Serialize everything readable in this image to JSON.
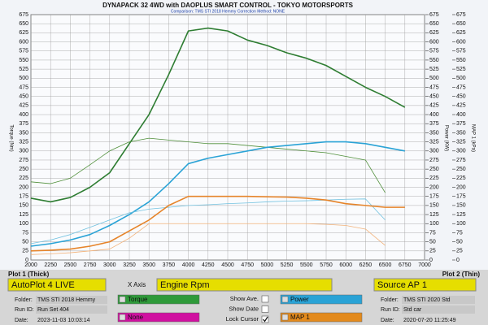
{
  "chart_data": {
    "type": "line",
    "title": "DYNAPACK 32 4WD with DAOPLUS SMART CONTROL - TOKYO MOTORSPORTS",
    "subtitle": "Comparison: TMS STI 2018 Hemmy    Correction Method: NONE",
    "y_label": "Torque (Nm)",
    "y2_label": "Power (KW)",
    "y3_label": "MAP 1 (kPa)",
    "x": [
      2000,
      2250,
      2500,
      2750,
      3000,
      3250,
      3500,
      3750,
      4000,
      4250,
      4500,
      4750,
      5000,
      5250,
      5500,
      5750,
      6000,
      6250,
      6500,
      6750
    ],
    "xlim": [
      2000,
      7000
    ],
    "xticks": [
      2000,
      2250,
      2500,
      2750,
      3000,
      3250,
      3500,
      3750,
      4000,
      4250,
      4500,
      4750,
      5000,
      5250,
      5500,
      5750,
      6000,
      6250,
      6500,
      6750,
      7000
    ],
    "ylim": [
      0,
      675
    ],
    "yticks": [
      0,
      25,
      50,
      75,
      100,
      125,
      150,
      175,
      200,
      225,
      250,
      275,
      300,
      325,
      350,
      375,
      400,
      425,
      450,
      475,
      500,
      525,
      550,
      575,
      600,
      625,
      650,
      675
    ],
    "grid": true,
    "series": [
      {
        "color": "#2e7d32",
        "width": 1.6,
        "values": [
          170,
          160,
          172,
          200,
          240,
          320,
          400,
          510,
          630,
          638,
          630,
          605,
          590,
          570,
          555,
          535,
          505,
          475,
          450,
          420
        ]
      },
      {
        "color": "#4f8f3a",
        "width": 0.8,
        "values": [
          215,
          210,
          225,
          262,
          300,
          325,
          335,
          330,
          325,
          320,
          320,
          315,
          310,
          305,
          300,
          295,
          285,
          275,
          185,
          null
        ]
      },
      {
        "color": "#2aa3d6",
        "width": 1.6,
        "values": [
          38,
          45,
          55,
          70,
          95,
          125,
          160,
          210,
          265,
          280,
          290,
          300,
          310,
          315,
          320,
          325,
          325,
          320,
          310,
          300
        ]
      },
      {
        "color": "#72c2e0",
        "width": 0.8,
        "values": [
          45,
          55,
          70,
          90,
          110,
          130,
          140,
          145,
          150,
          152,
          155,
          157,
          160,
          162,
          163,
          165,
          167,
          168,
          110,
          null
        ]
      },
      {
        "color": "#e6842a",
        "width": 1.6,
        "values": [
          25,
          27,
          30,
          38,
          50,
          80,
          110,
          150,
          175,
          175,
          175,
          175,
          174,
          173,
          170,
          165,
          155,
          150,
          145,
          145
        ]
      },
      {
        "color": "#f2b27a",
        "width": 0.8,
        "values": [
          15,
          17,
          20,
          25,
          30,
          60,
          100,
          100,
          100,
          100,
          100,
          100,
          100,
          100,
          100,
          98,
          95,
          85,
          40,
          null
        ]
      }
    ]
  },
  "panel": {
    "plot1_label": "Plot 1 (Thick)",
    "plot2_label": "Plot 2 (Thin)",
    "plot1_source": "AutoPlot 4 LIVE",
    "x_axis_label": "X Axis",
    "x_axis": "Engine Rpm",
    "plot2_source": "Source AP 1",
    "channels": [
      {
        "label": "Torque",
        "color": "#2f9a3a"
      },
      {
        "label": "Power",
        "color": "#2aa3d6"
      },
      {
        "label": "None",
        "color": "#d010a0"
      },
      {
        "label": "MAP 1",
        "color": "#e38a1c"
      }
    ],
    "options": [
      {
        "label": "Show Ave.",
        "checked": false
      },
      {
        "label": "Show Date",
        "checked": false
      },
      {
        "label": "Lock Cursor",
        "checked": true
      }
    ],
    "plot1": {
      "folder_label": "Folder:",
      "folder": "TMS STI 2018 Hemmy",
      "run_label": "Run ID:",
      "run": "Run Set 404",
      "date_label": "Date:",
      "date": "2023-11-03 10:03:14"
    },
    "plot2": {
      "folder_label": "Folder:",
      "folder": "TMS STI 2020 Std",
      "run_label": "Run ID:",
      "run": "Std car",
      "date_label": "Date:",
      "date": "2020-07-20 11:25:49"
    }
  }
}
